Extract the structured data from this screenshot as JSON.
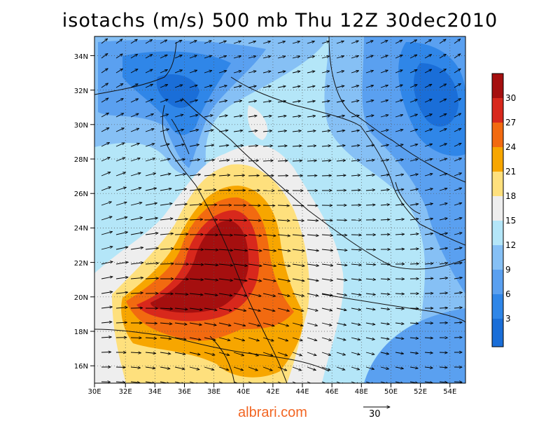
{
  "title": "isotachs (m/s) 500 mb Thu 12Z 30dec2010",
  "credit": "albrari.com",
  "reference_vector": {
    "label": "30",
    "speed_ms": 30
  },
  "axes": {
    "lon_min": 30,
    "lon_max": 55,
    "lat_min": 15,
    "lat_max": 35,
    "x_ticks": [
      "30E",
      "32E",
      "34E",
      "36E",
      "38E",
      "40E",
      "42E",
      "44E",
      "46E",
      "48E",
      "50E",
      "52E",
      "54E"
    ],
    "y_ticks": [
      "16N",
      "18N",
      "20N",
      "22N",
      "24N",
      "26N",
      "28N",
      "30N",
      "32N",
      "34N"
    ],
    "grid": "dotted"
  },
  "colorbar": {
    "levels": [
      "3",
      "6",
      "9",
      "12",
      "15",
      "18",
      "21",
      "24",
      "27",
      "30"
    ],
    "colors": [
      "#1a6ed8",
      "#2f86e8",
      "#5aa0f0",
      "#86c0f5",
      "#b4e6f8",
      "#eeeeee",
      "#fee07d",
      "#f7a600",
      "#f26a10",
      "#d8281c",
      "#a50f0f"
    ]
  },
  "colors": {
    "speed_3": "#1a6ed8",
    "speed_6": "#2f86e8",
    "speed_9": "#5aa0f0",
    "speed_12": "#86c0f5",
    "speed_15": "#b4e6f8",
    "speed_18": "#eeeeee",
    "speed_21": "#fee07d",
    "speed_24": "#f7a600",
    "speed_27": "#f26a10",
    "speed_30": "#d8281c",
    "speed_max": "#a50f0f"
  }
}
